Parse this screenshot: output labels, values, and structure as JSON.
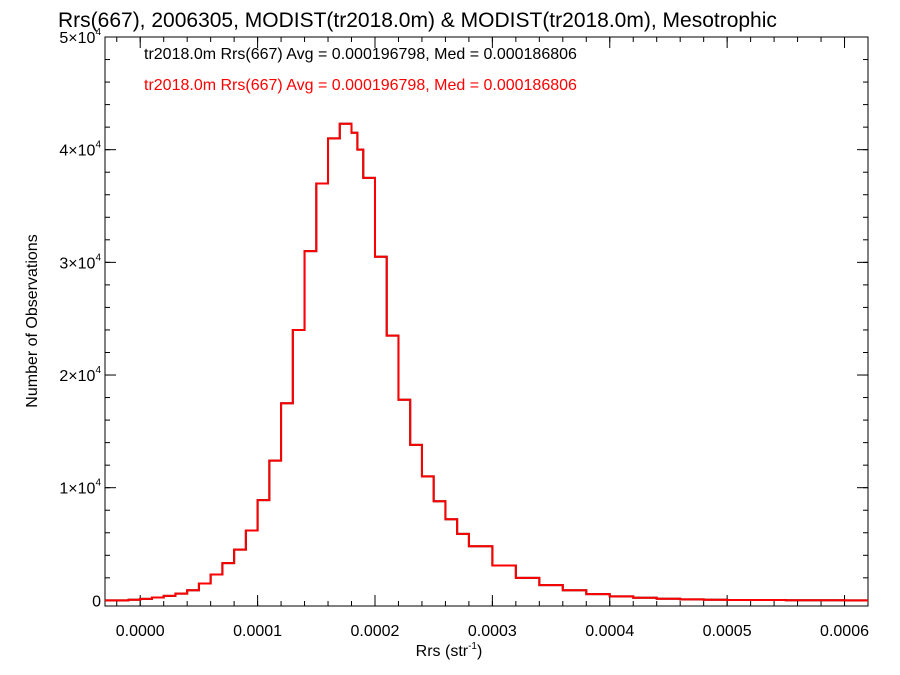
{
  "colors": {
    "black": "#000000",
    "red": "#ff0000",
    "background": "#ffffff"
  },
  "chart_data": {
    "type": "line",
    "title": "Rrs(667), 2006305, MODIST(tr2018.0m) & MODIST(tr2018.0m), Mesotrophic",
    "xlabel": "Rrs (str",
    "xlabel_sup": "-1",
    "xlabel_suffix": ")",
    "ylabel": "Number of Observations",
    "xlim": [
      -3e-05,
      0.00062
    ],
    "ylim": [
      -500,
      50000
    ],
    "x_scale": "linear",
    "grid": false,
    "legend_placement": "top-left",
    "x_ticks": [
      {
        "value": 0.0,
        "label": "0.0000"
      },
      {
        "value": 0.0001,
        "label": "0.0001"
      },
      {
        "value": 0.0002,
        "label": "0.0002"
      },
      {
        "value": 0.0003,
        "label": "0.0003"
      },
      {
        "value": 0.0004,
        "label": "0.0004"
      },
      {
        "value": 0.0005,
        "label": "0.0005"
      },
      {
        "value": 0.0006,
        "label": "0.0006"
      }
    ],
    "y_ticks": [
      {
        "value": 0,
        "mant": "0",
        "exp": ""
      },
      {
        "value": 10000,
        "mant": "1×10",
        "exp": "4"
      },
      {
        "value": 20000,
        "mant": "2×10",
        "exp": "4"
      },
      {
        "value": 30000,
        "mant": "3×10",
        "exp": "4"
      },
      {
        "value": 40000,
        "mant": "4×10",
        "exp": "4"
      },
      {
        "value": 50000,
        "mant": "5×10",
        "exp": "4"
      }
    ],
    "x_minor_step": 2e-05,
    "y_minor_step": 2000,
    "series": [
      {
        "name": "tr2018.0m Rrs(667) Avg = 0.000196798, Med = 0.000186806",
        "color": "#000000",
        "x": [
          -3e-05,
          -1e-05,
          0.0,
          1e-05,
          2e-05,
          3e-05,
          4e-05,
          5e-05,
          6e-05,
          7e-05,
          8e-05,
          9e-05,
          0.0001,
          0.00011,
          0.00012,
          0.00013,
          0.00014,
          0.00015,
          0.00016,
          0.00017,
          0.000175,
          0.00018,
          0.000185,
          0.00019,
          0.0002,
          0.00021,
          0.00022,
          0.00023,
          0.00024,
          0.00025,
          0.00026,
          0.00027,
          0.00028,
          0.0003,
          0.00032,
          0.00034,
          0.00036,
          0.00038,
          0.0004,
          0.00042,
          0.00044,
          0.00046,
          0.00048,
          0.0005,
          0.00055,
          0.0006,
          0.00062
        ],
        "y": [
          0,
          60,
          130,
          250,
          400,
          600,
          900,
          1500,
          2300,
          3300,
          4500,
          6200,
          8900,
          12400,
          17500,
          24000,
          31000,
          37000,
          41000,
          42300,
          42300,
          41500,
          40000,
          37500,
          30500,
          23500,
          17800,
          13800,
          11000,
          8800,
          7200,
          5900,
          4800,
          3100,
          2000,
          1350,
          900,
          550,
          350,
          230,
          140,
          90,
          50,
          30,
          10,
          0,
          0
        ]
      },
      {
        "name": "tr2018.0m Rrs(667) Avg = 0.000196798, Med = 0.000186806",
        "color": "#ff0000",
        "x": [
          -3e-05,
          -1e-05,
          0.0,
          1e-05,
          2e-05,
          3e-05,
          4e-05,
          5e-05,
          6e-05,
          7e-05,
          8e-05,
          9e-05,
          0.0001,
          0.00011,
          0.00012,
          0.00013,
          0.00014,
          0.00015,
          0.00016,
          0.00017,
          0.000175,
          0.00018,
          0.000185,
          0.00019,
          0.0002,
          0.00021,
          0.00022,
          0.00023,
          0.00024,
          0.00025,
          0.00026,
          0.00027,
          0.00028,
          0.0003,
          0.00032,
          0.00034,
          0.00036,
          0.00038,
          0.0004,
          0.00042,
          0.00044,
          0.00046,
          0.00048,
          0.0005,
          0.00055,
          0.0006,
          0.00062
        ],
        "y": [
          0,
          60,
          130,
          250,
          400,
          600,
          900,
          1500,
          2300,
          3300,
          4500,
          6200,
          8900,
          12400,
          17500,
          24000,
          31000,
          37000,
          41000,
          42300,
          42300,
          41500,
          40000,
          37500,
          30500,
          23500,
          17800,
          13800,
          11000,
          8800,
          7200,
          5900,
          4800,
          3100,
          2000,
          1350,
          900,
          550,
          350,
          230,
          140,
          90,
          50,
          30,
          10,
          0,
          0
        ]
      }
    ]
  }
}
